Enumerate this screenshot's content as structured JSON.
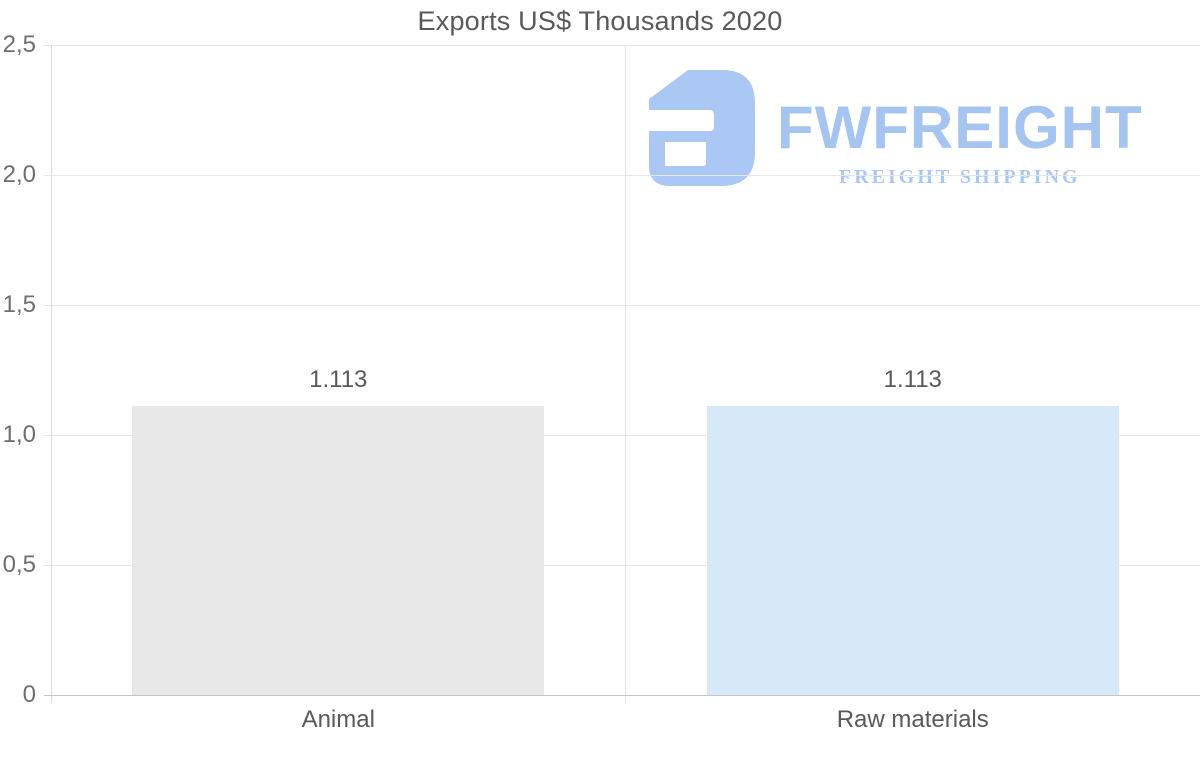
{
  "chart_data": {
    "type": "bar",
    "title": "Exports US$ Thousands 2020",
    "categories": [
      "Animal",
      "Raw materials"
    ],
    "series": [
      {
        "name": "Exports US$ Thousands 2020",
        "values": [
          1.113,
          1.113
        ]
      }
    ],
    "value_labels": [
      "1.113",
      "1.113"
    ],
    "y_ticks": [
      "0",
      "0,5",
      "1,0",
      "1,5",
      "2,0",
      "2,5"
    ],
    "ylim": [
      0,
      2.5
    ],
    "grid": true,
    "legend_position": "none",
    "bar_colors": [
      "#e8e8e8",
      "#d7e8f8"
    ],
    "xlabel": "",
    "ylabel": ""
  },
  "watermark": {
    "brand": "FWFREIGHT",
    "tagline": "FREIGHT SHIPPING",
    "color": "#a6c4f0"
  },
  "colors": {
    "title_text": "#595959",
    "tick_text": "#6e6e6e",
    "gridline": "#e6e6e6",
    "axis_line": "#c6c6c6",
    "bar_animal": "#e8e8e8",
    "bar_raw_materials": "#d7e8f8"
  }
}
